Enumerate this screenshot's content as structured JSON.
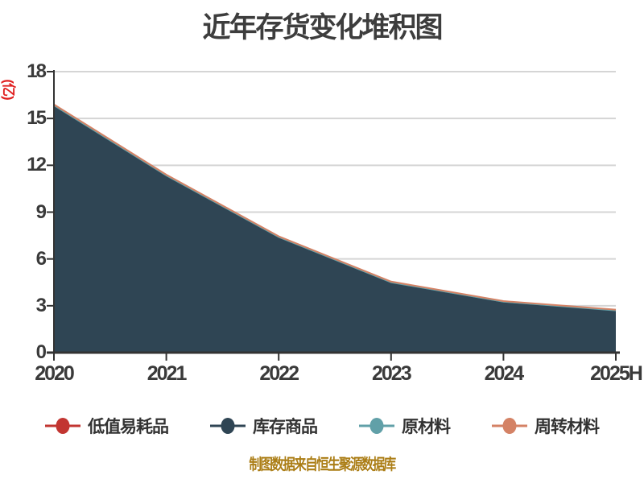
{
  "source_note": "制图数据来自恒生聚源数据库",
  "colors": {
    "background": "#ffffff",
    "title_text": "#3d3d3d",
    "axis_line": "#333333",
    "tick_text": "#3a3a3a",
    "gridline": "#d5d5d5",
    "y_unit_text": "#e02020",
    "legend_text": "#333333",
    "source_note_text": "#ab7d15"
  },
  "chart_data": {
    "type": "area",
    "stacked": true,
    "title": "近年存货变化堆积图",
    "ylabel": "(亿)",
    "xlabel": "",
    "categories": [
      "2020",
      "2021",
      "2022",
      "2023",
      "2024",
      "2025H"
    ],
    "series": [
      {
        "name": "低值易耗品",
        "color": "#c23531",
        "values": [
          0.02,
          0.02,
          0.02,
          0.02,
          0.02,
          0.02
        ]
      },
      {
        "name": "库存商品",
        "color": "#2f4554",
        "values": [
          15.76,
          11.27,
          7.33,
          4.43,
          3.19,
          2.63
        ]
      },
      {
        "name": "原材料",
        "color": "#61a0a8",
        "values": [
          0.08,
          0.08,
          0.07,
          0.07,
          0.06,
          0.07
        ]
      },
      {
        "name": "周转材料",
        "color": "#d48265",
        "values": [
          0.04,
          0.03,
          0.03,
          0.03,
          0.03,
          0.03
        ]
      }
    ],
    "stack_totals": [
      15.9,
      11.4,
      7.45,
      4.55,
      3.3,
      2.75
    ],
    "ylim": [
      0,
      18
    ],
    "yticks": [
      0,
      3,
      6,
      9,
      12,
      15,
      18
    ],
    "grid": true,
    "legend_position": "bottom"
  }
}
